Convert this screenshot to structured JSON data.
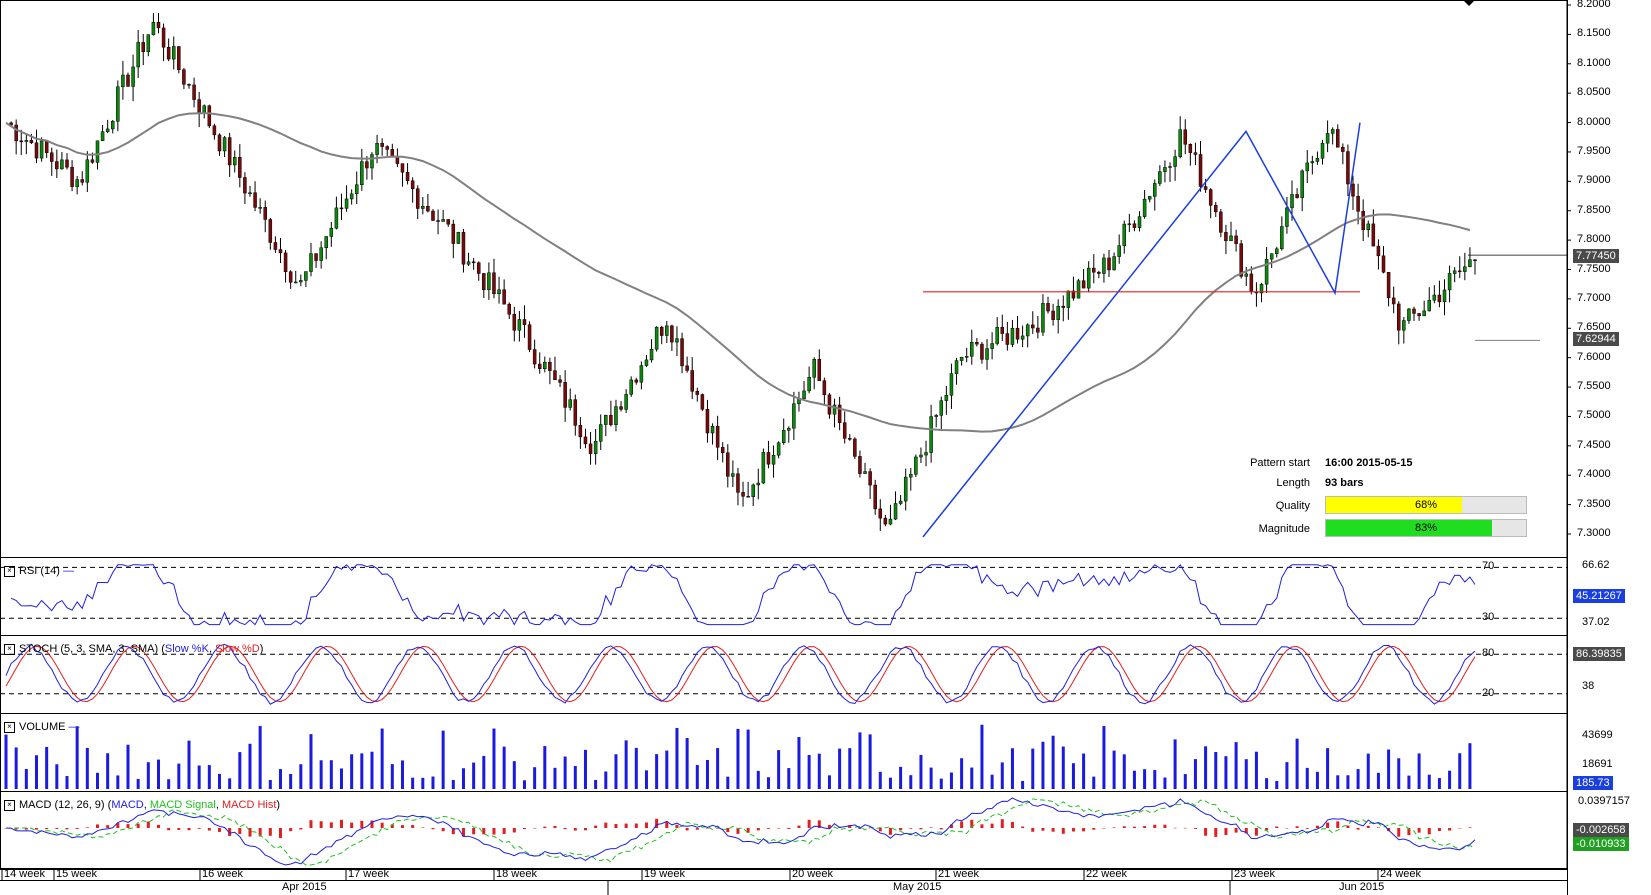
{
  "chart_data": {
    "type": "candlestick",
    "main": {
      "price_ticks": [
        "8.2000",
        "8.1500",
        "8.1000",
        "8.0500",
        "8.0000",
        "7.9500",
        "7.9000",
        "7.8500",
        "7.8000",
        "7.7500",
        "7.7000",
        "7.6500",
        "7.6000",
        "7.5500",
        "7.5000",
        "7.4500",
        "7.4000",
        "7.3500",
        "7.3000"
      ],
      "ylim": [
        7.3,
        8.2
      ],
      "last_price": "7.77450",
      "ma_value": "7.62944",
      "support_level": 7.712,
      "pattern_points": [
        {
          "bar": 0,
          "price": 7.295
        },
        {
          "bar": 34,
          "price": 7.985
        },
        {
          "bar": 45,
          "price": 7.71
        },
        {
          "bar": 47,
          "price": 8.0
        }
      ],
      "key_prices": [
        8.0,
        7.9,
        8.17,
        7.95,
        7.72,
        7.96,
        7.82,
        7.65,
        7.45,
        7.67,
        7.35,
        7.58,
        7.3,
        7.6,
        7.66,
        7.76,
        7.98,
        7.71,
        8.0,
        7.65,
        7.77
      ]
    },
    "pattern_info": {
      "pattern_start_label": "Pattern start",
      "pattern_start_value": "16:00 2015-05-15",
      "length_label": "Length",
      "length_value": "93 bars",
      "quality_label": "Quality",
      "quality_pct": 68,
      "quality_text": "68%",
      "magnitude_label": "Magnitude",
      "magnitude_pct": 83,
      "magnitude_text": "83%"
    },
    "rsi": {
      "label": "RSI (14)",
      "levels": [
        "70",
        "30"
      ],
      "right_label": "66.62",
      "value": "45.21267",
      "value_below": "37.02"
    },
    "stoch": {
      "label": "STOCH (5, 3, SMA, 3, SMA)",
      "k_label": "Slow %K",
      "d_label": "Slow %D",
      "levels": [
        "80",
        "20"
      ],
      "right_label": "38",
      "value": "86.39835"
    },
    "volume": {
      "label": "VOLUME",
      "right_labels": [
        "43699",
        "18691"
      ],
      "value": "185.73"
    },
    "macd": {
      "label": "MACD (12, 26, 9)",
      "macd_label": "MACD",
      "signal_label": "MACD Signal",
      "hist_label": "MACD Hist",
      "right_label": "0.0397157",
      "value": "-0.002658",
      "value2": "-0.010933"
    },
    "x_weeks": [
      "14 week",
      "15 week",
      "16 week",
      "17 week",
      "18 week",
      "19 week",
      "20 week",
      "21 week",
      "22 week",
      "23 week",
      "24 week"
    ],
    "x_months": [
      "Apr 2015",
      "May 2015",
      "Jun 2015"
    ]
  },
  "colors": {
    "candle_bull": "#0a8a0a",
    "candle_bear": "#7a0a0a",
    "ma": "#808080",
    "pattern_line": "#1a3fe0",
    "support": "#e02020",
    "rsi": "#2020e0",
    "stoch_k": "#2020e0",
    "stoch_d": "#e02020",
    "volume": "#1a1ae0",
    "macd": "#2020e0",
    "signal": "#20c020",
    "hist": "#e02020",
    "quality_fill": "#ffff00",
    "magnitude_fill": "#20dd20",
    "badge_dark": "#4a4a4a",
    "badge_blue": "#1a3fe0"
  }
}
